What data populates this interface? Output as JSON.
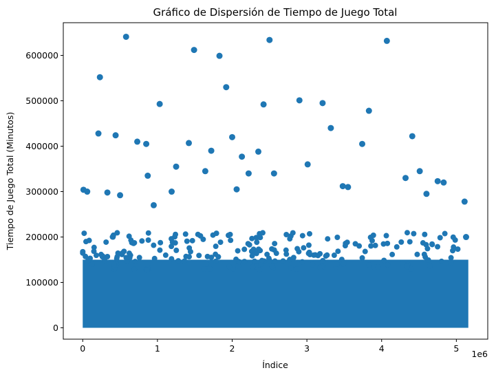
{
  "chart_data": {
    "type": "scatter",
    "title": "Gráfico de Dispersión de Tiempo de Juego Total",
    "xlabel": "Índice",
    "ylabel": "Tiempo de Juego Total (Minutos)",
    "x_offset_text": "1e6",
    "x_scale_factor": 1000000,
    "xlim": [
      -260000,
      5420000
    ],
    "ylim": [
      -25000,
      672000
    ],
    "x_ticks": [
      0,
      1000000,
      2000000,
      3000000,
      4000000,
      5000000
    ],
    "x_tick_labels": [
      "0",
      "1",
      "2",
      "3",
      "4",
      "5"
    ],
    "y_ticks": [
      0,
      100000,
      200000,
      300000,
      400000,
      500000,
      600000
    ],
    "y_tick_labels": [
      "0",
      "100000",
      "200000",
      "300000",
      "400000",
      "500000",
      "600000"
    ],
    "grid": false,
    "legend": "none",
    "marker_color": "#1f77b4",
    "dense_region": {
      "x_range": [
        0,
        5160000
      ],
      "y_range": [
        0,
        150000
      ],
      "note_points_fill_region": true
    },
    "series": [
      {
        "x": [
          580000,
          1490000,
          1830000,
          2500000,
          4070000,
          230000,
          1920000,
          1030000,
          2900000,
          3210000,
          2420000,
          3830000,
          210000,
          440000,
          3320000,
          730000,
          850000,
          1420000,
          3740000,
          4410000,
          2000000,
          1720000,
          2350000,
          2130000,
          4510000,
          2220000,
          3010000,
          1250000,
          2560000,
          1640000,
          4320000,
          4750000,
          10000,
          60000,
          330000,
          500000,
          870000,
          1190000,
          2060000,
          3480000,
          3550000,
          4830000,
          5110000,
          5130000,
          950000,
          4600000
        ],
        "y": [
          641000,
          612000,
          599000,
          634000,
          632000,
          552000,
          530000,
          493000,
          501000,
          495000,
          492000,
          478000,
          428000,
          424000,
          440000,
          410000,
          405000,
          407000,
          405000,
          422000,
          420000,
          390000,
          388000,
          377000,
          345000,
          340000,
          360000,
          355000,
          340000,
          345000,
          330000,
          323000,
          304000,
          300000,
          298000,
          292000,
          335000,
          300000,
          305000,
          312000,
          310000,
          320000,
          278000,
          200000,
          270000,
          295000
        ]
      }
    ]
  }
}
